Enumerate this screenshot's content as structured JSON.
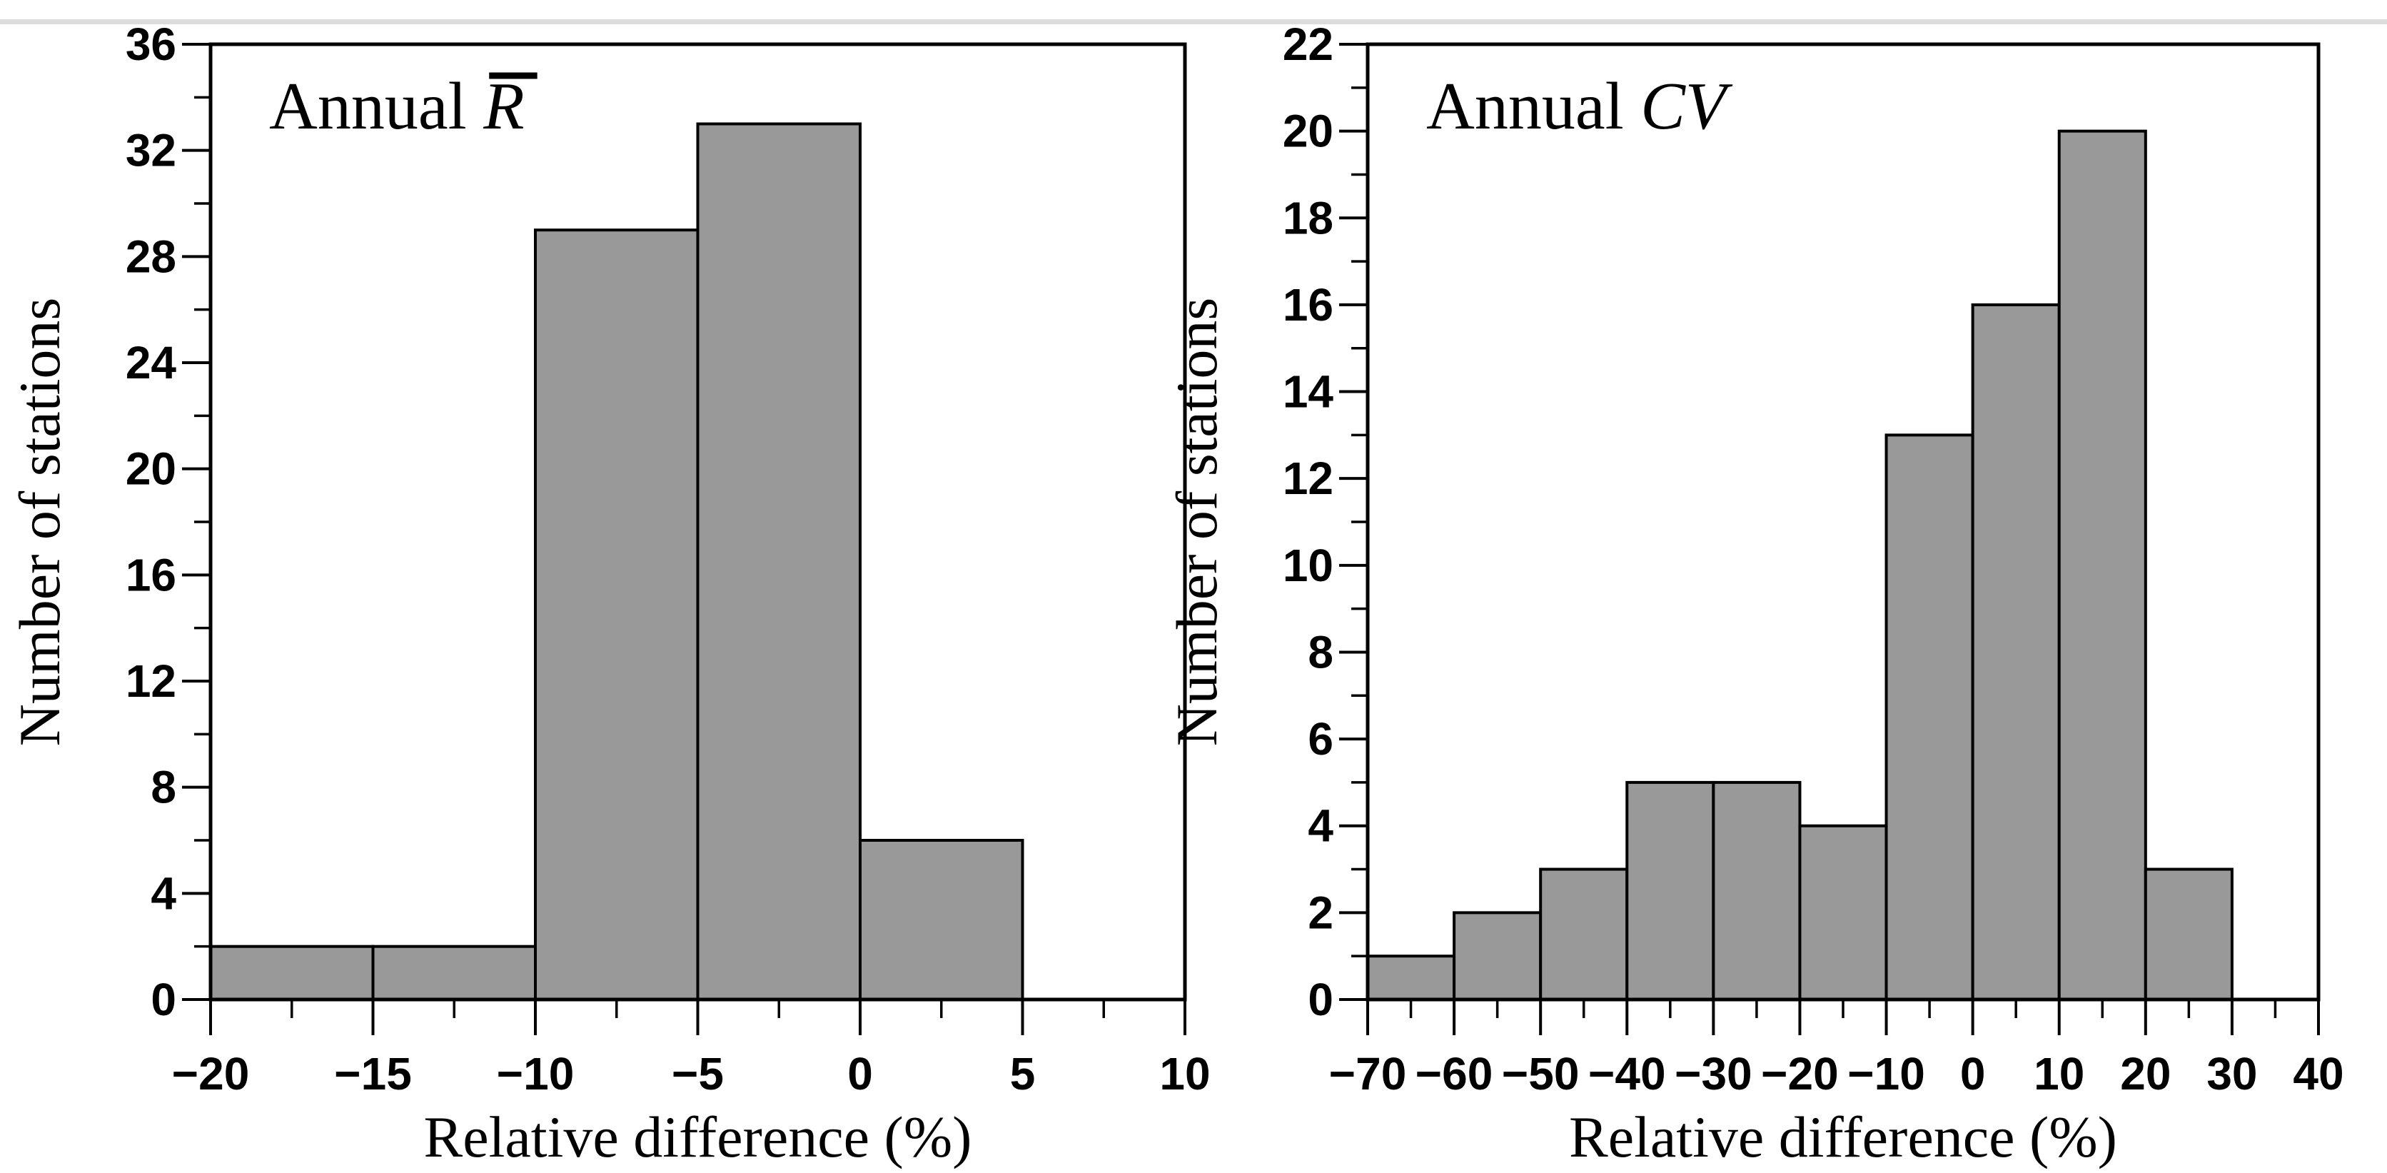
{
  "page": {
    "background": "#ffffff",
    "top_rule_color": "#dcdcdc"
  },
  "chart_data": [
    {
      "id": "annual-mean-r",
      "type": "bar",
      "variant": "histogram",
      "title": "Annual R̄",
      "title_parts": [
        {
          "text": "Annual ",
          "italic": false,
          "overline": false
        },
        {
          "text": "R",
          "italic": true,
          "overline": true
        }
      ],
      "xlabel": "Relative difference (%)",
      "ylabel": "Number of stations",
      "bin_width": 5,
      "bin_edges": [
        -20,
        -15,
        -10,
        -5,
        0
      ],
      "values": [
        2,
        2,
        29,
        33,
        6
      ],
      "xlim": [
        -20,
        10
      ],
      "ylim": [
        0,
        36
      ],
      "x_major_ticks": [
        -20,
        -15,
        -10,
        -5,
        0,
        5,
        10
      ],
      "x_tick_labels": [
        "−20",
        "−15",
        "−10",
        "−5",
        "0",
        "5",
        "10"
      ],
      "x_minor_step": 2.5,
      "y_major_ticks": [
        0,
        4,
        8,
        12,
        16,
        20,
        24,
        28,
        32,
        36
      ],
      "y_tick_labels": [
        "0",
        "4",
        "8",
        "12",
        "16",
        "20",
        "24",
        "28",
        "32",
        "36"
      ],
      "y_minor_step": 2,
      "grid": false,
      "legend": null,
      "bar_fill": "#999999",
      "bar_edge": "#000000"
    },
    {
      "id": "annual-cv",
      "type": "bar",
      "variant": "histogram",
      "title": "Annual CV",
      "title_parts": [
        {
          "text": "Annual ",
          "italic": false,
          "overline": false
        },
        {
          "text": "CV",
          "italic": true,
          "overline": false
        }
      ],
      "xlabel": "Relative difference (%)",
      "ylabel": "Number of stations",
      "bin_width": 10,
      "bin_edges": [
        -70,
        -60,
        -50,
        -40,
        -30,
        -20,
        -10,
        0,
        10,
        20
      ],
      "values": [
        1,
        2,
        3,
        5,
        5,
        4,
        13,
        16,
        20,
        3
      ],
      "xlim": [
        -70,
        40
      ],
      "ylim": [
        0,
        22
      ],
      "x_major_ticks": [
        -70,
        -60,
        -50,
        -40,
        -30,
        -20,
        -10,
        0,
        10,
        20,
        30,
        40
      ],
      "x_tick_labels": [
        "−70",
        "−60",
        "−50",
        "−40",
        "−30",
        "−20",
        "−10",
        "0",
        "10",
        "20",
        "30",
        "40"
      ],
      "x_minor_step": 5,
      "y_major_ticks": [
        0,
        2,
        4,
        6,
        8,
        10,
        12,
        14,
        16,
        18,
        20,
        22
      ],
      "y_tick_labels": [
        "0",
        "2",
        "4",
        "6",
        "8",
        "10",
        "12",
        "14",
        "16",
        "18",
        "20",
        "22"
      ],
      "y_minor_step": 1,
      "grid": false,
      "legend": null,
      "bar_fill": "#999999",
      "bar_edge": "#000000"
    }
  ]
}
